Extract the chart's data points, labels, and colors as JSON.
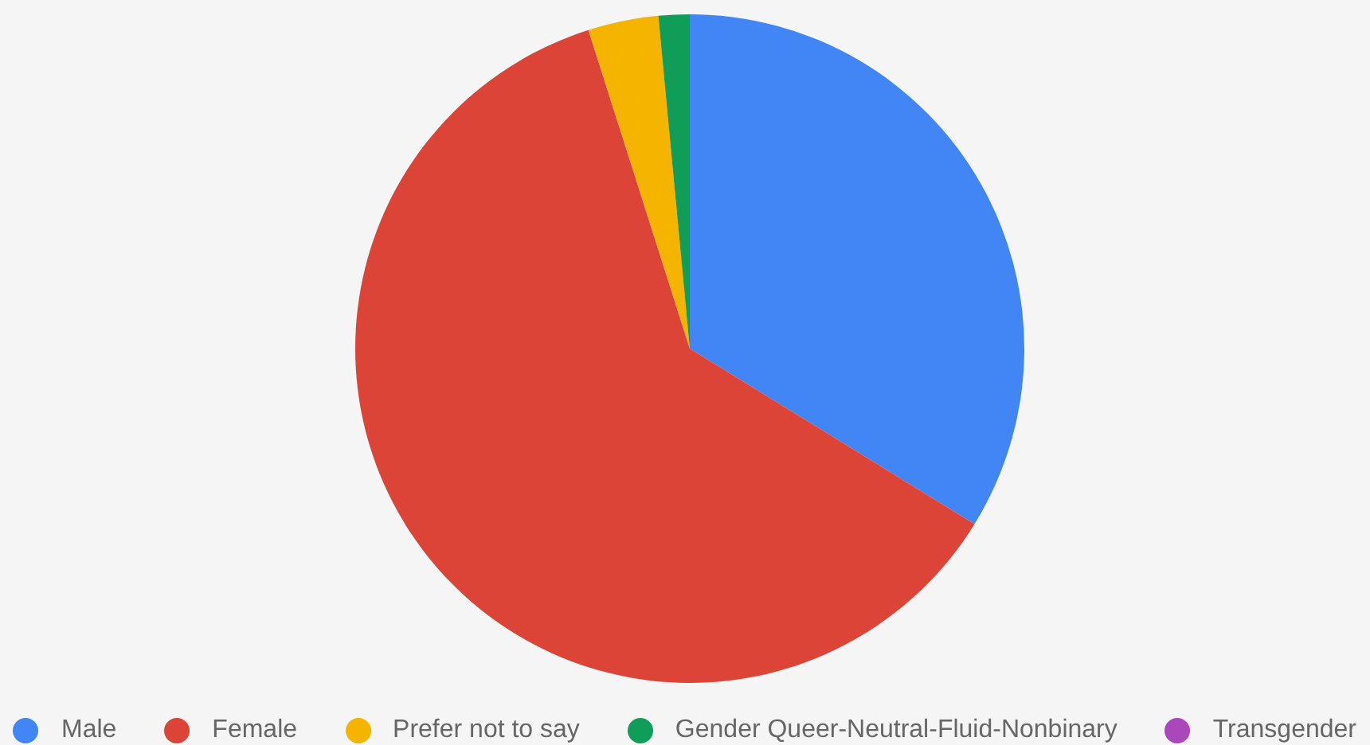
{
  "chart_data": {
    "type": "pie",
    "categories": [
      "Male",
      "Female",
      "Prefer not to say",
      "Gender Queer-Neutral-Fluid-Nonbinary",
      "Transgender"
    ],
    "values": [
      33.8,
      61.3,
      3.4,
      1.5,
      0
    ],
    "colors": [
      "#4285f4",
      "#db4437",
      "#f4b400",
      "#0f9d58",
      "#ab47bc"
    ],
    "legend": "bottom"
  }
}
